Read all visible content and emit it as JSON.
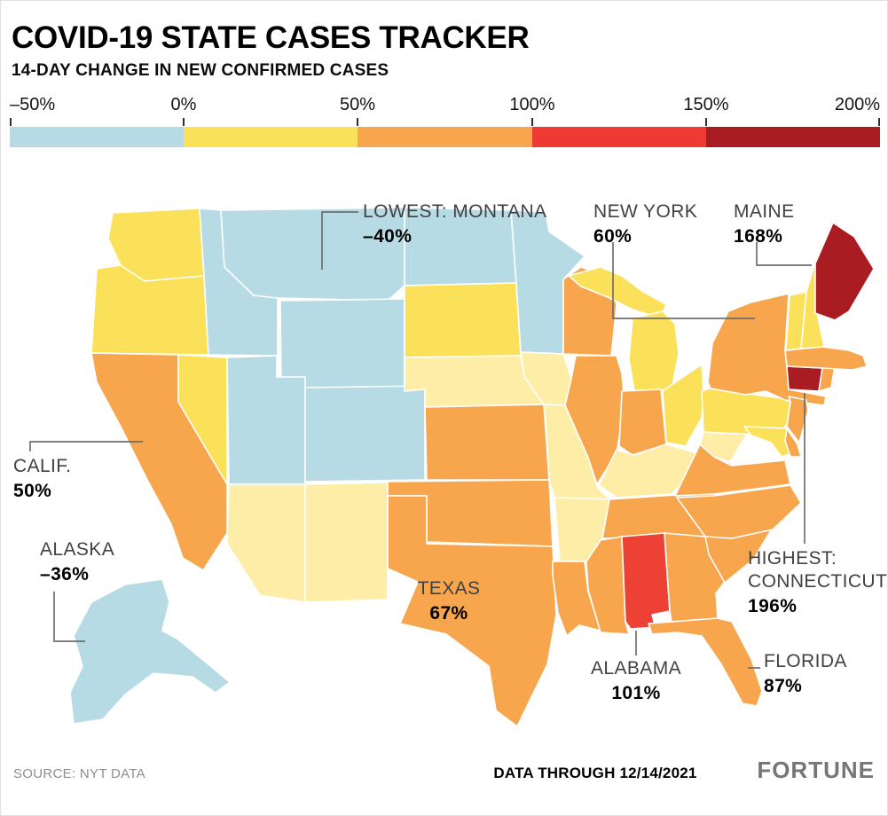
{
  "header": {
    "title": "COVID-19 STATE CASES TRACKER",
    "subtitle": "14-DAY CHANGE IN NEW CONFIRMED CASES"
  },
  "legend": {
    "labels": [
      "–50%",
      "0%",
      "50%",
      "100%",
      "150%",
      "200%"
    ],
    "colors": [
      "#b6dbe5",
      "#fbe159",
      "#f8a64d",
      "#ee3a33",
      "#a81c22"
    ]
  },
  "annotations": [
    {
      "id": "montana",
      "label": "LOWEST: MONTANA",
      "value": "–40%"
    },
    {
      "id": "new-york",
      "label": "NEW YORK",
      "value": "60%"
    },
    {
      "id": "maine",
      "label": "MAINE",
      "value": "168%"
    },
    {
      "id": "california",
      "label": "CALIF.",
      "value": "50%"
    },
    {
      "id": "alaska",
      "label": "ALASKA",
      "value": "–36%"
    },
    {
      "id": "texas",
      "label": "TEXAS",
      "value": "67%"
    },
    {
      "id": "alabama",
      "label": "ALABAMA",
      "value": "101%"
    },
    {
      "id": "connecticut",
      "label": "HIGHEST:\nCONNECTICUT",
      "value": "196%"
    },
    {
      "id": "florida",
      "label": "FLORIDA",
      "value": "87%"
    }
  ],
  "footer": {
    "source": "SOURCE: NYT DATA",
    "data_through": "DATA THROUGH 12/14/2021",
    "brand": "FORTUNE"
  },
  "chart_data": {
    "type": "choropleth_map",
    "title": "COVID-19 STATE CASES TRACKER",
    "subtitle": "14-DAY CHANGE IN NEW CONFIRMED CASES",
    "metric": "14-day % change in new confirmed COVID-19 cases",
    "data_through": "12/14/2021",
    "source": "NYT DATA",
    "color_scale": {
      "stop_labels": [
        "–50%",
        "0%",
        "50%",
        "100%",
        "150%",
        "200%"
      ],
      "colors": [
        "#b6dbe5",
        "#fbe159",
        "#f8a64d",
        "#ee3a33",
        "#a81c22"
      ]
    },
    "palette": {
      "blue": "#b6dbe5",
      "paleYellow": "#fdeda6",
      "yellow": "#fbe159",
      "orange": "#f8a64d",
      "red": "#ee4136",
      "darkRed": "#a81c22"
    },
    "annotated_values": [
      {
        "state": "Montana",
        "value_pct": -40,
        "note": "LOWEST"
      },
      {
        "state": "New York",
        "value_pct": 60
      },
      {
        "state": "Maine",
        "value_pct": 168
      },
      {
        "state": "California",
        "value_pct": 50
      },
      {
        "state": "Alaska",
        "value_pct": -36
      },
      {
        "state": "Texas",
        "value_pct": 67
      },
      {
        "state": "Alabama",
        "value_pct": 101
      },
      {
        "state": "Connecticut",
        "value_pct": 196,
        "note": "HIGHEST"
      },
      {
        "state": "Florida",
        "value_pct": 87
      }
    ],
    "states": [
      {
        "abbr": "WA",
        "bucket": "yellow"
      },
      {
        "abbr": "OR",
        "bucket": "yellow"
      },
      {
        "abbr": "CA",
        "bucket": "orange"
      },
      {
        "abbr": "NV",
        "bucket": "yellow"
      },
      {
        "abbr": "ID",
        "bucket": "blue"
      },
      {
        "abbr": "MT",
        "bucket": "blue"
      },
      {
        "abbr": "WY",
        "bucket": "blue"
      },
      {
        "abbr": "UT",
        "bucket": "blue"
      },
      {
        "abbr": "CO",
        "bucket": "blue"
      },
      {
        "abbr": "AZ",
        "bucket": "paleYellow"
      },
      {
        "abbr": "NM",
        "bucket": "paleYellow"
      },
      {
        "abbr": "ND",
        "bucket": "blue"
      },
      {
        "abbr": "SD",
        "bucket": "yellow"
      },
      {
        "abbr": "NE",
        "bucket": "paleYellow"
      },
      {
        "abbr": "KS",
        "bucket": "orange"
      },
      {
        "abbr": "OK",
        "bucket": "orange"
      },
      {
        "abbr": "TX",
        "bucket": "orange"
      },
      {
        "abbr": "MN",
        "bucket": "blue"
      },
      {
        "abbr": "IA",
        "bucket": "paleYellow"
      },
      {
        "abbr": "MO",
        "bucket": "paleYellow"
      },
      {
        "abbr": "AR",
        "bucket": "paleYellow"
      },
      {
        "abbr": "LA",
        "bucket": "orange"
      },
      {
        "abbr": "WI",
        "bucket": "orange"
      },
      {
        "abbr": "MI",
        "bucket": "yellow"
      },
      {
        "abbr": "IL",
        "bucket": "orange"
      },
      {
        "abbr": "IN",
        "bucket": "orange"
      },
      {
        "abbr": "OH",
        "bucket": "yellow"
      },
      {
        "abbr": "KY",
        "bucket": "paleYellow"
      },
      {
        "abbr": "TN",
        "bucket": "orange"
      },
      {
        "abbr": "MS",
        "bucket": "orange"
      },
      {
        "abbr": "AL",
        "bucket": "red"
      },
      {
        "abbr": "GA",
        "bucket": "orange"
      },
      {
        "abbr": "FL",
        "bucket": "orange"
      },
      {
        "abbr": "SC",
        "bucket": "orange"
      },
      {
        "abbr": "NC",
        "bucket": "orange"
      },
      {
        "abbr": "VA",
        "bucket": "orange"
      },
      {
        "abbr": "WV",
        "bucket": "paleYellow"
      },
      {
        "abbr": "PA",
        "bucket": "yellow"
      },
      {
        "abbr": "NY",
        "bucket": "orange"
      },
      {
        "abbr": "NJ",
        "bucket": "orange"
      },
      {
        "abbr": "CT",
        "bucket": "darkRed"
      },
      {
        "abbr": "RI",
        "bucket": "orange"
      },
      {
        "abbr": "MA",
        "bucket": "orange"
      },
      {
        "abbr": "VT",
        "bucket": "yellow"
      },
      {
        "abbr": "NH",
        "bucket": "yellow"
      },
      {
        "abbr": "ME",
        "bucket": "darkRed"
      },
      {
        "abbr": "MD",
        "bucket": "yellow"
      },
      {
        "abbr": "DE",
        "bucket": "orange"
      },
      {
        "abbr": "AK",
        "bucket": "blue"
      }
    ]
  }
}
